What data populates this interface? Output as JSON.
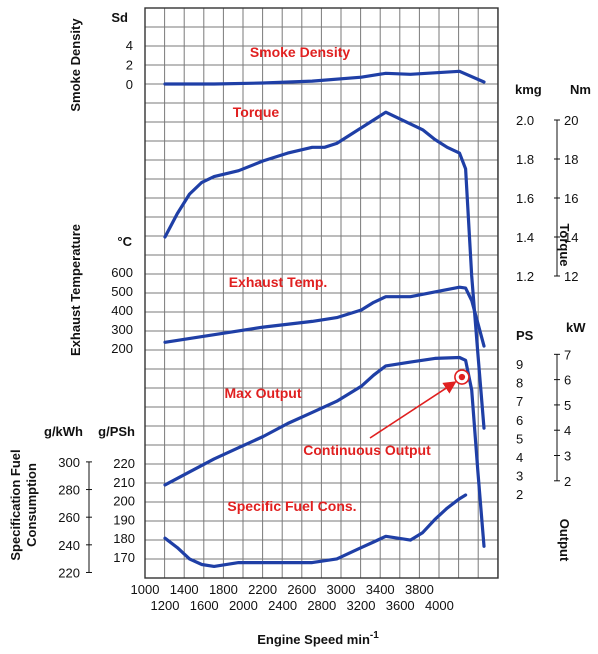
{
  "colors": {
    "curve": "#1f3fa6",
    "annotation": "#e02020",
    "grid": "#7a7a7a",
    "text": "#111111"
  },
  "chart_data": {
    "type": "line",
    "grid": true,
    "x_axis": {
      "label": "Engine Speed min",
      "label_sup": "-1",
      "lim": [
        1200,
        3800
      ],
      "ticks_upper": [
        "1000",
        "1400",
        "1800",
        "2200",
        "2600",
        "3000",
        "3400",
        "3800"
      ],
      "ticks_lower": [
        "1200",
        "1600",
        "2000",
        "2400",
        "2800",
        "3200",
        "3600",
        "4000"
      ]
    },
    "axes": {
      "smoke": {
        "unit": "Sd",
        "label": "Smoke Density",
        "ticks": [
          "4",
          "2",
          "0"
        ]
      },
      "torque_kgm": {
        "unit": "kmg",
        "ticks": [
          "2.0",
          "1.8",
          "1.6",
          "1.4",
          "1.2"
        ]
      },
      "torque_nm": {
        "unit": "Nm",
        "label": "Torque",
        "ticks": [
          "20",
          "18",
          "16",
          "14",
          "12"
        ]
      },
      "exhaust": {
        "unit": "°C",
        "label": "Exhaust Temperature",
        "ticks": [
          "600",
          "500",
          "400",
          "300",
          "200"
        ]
      },
      "output_ps": {
        "unit": "PS",
        "ticks": [
          "9",
          "8",
          "7",
          "6",
          "5",
          "4",
          "3",
          "2"
        ]
      },
      "output_kw": {
        "unit": "kW",
        "label": "Output",
        "ticks": [
          "7",
          "6",
          "5",
          "4",
          "3",
          "2"
        ]
      },
      "sfc_kwh": {
        "unit": "g/kWh",
        "ticks": [
          "300",
          "280",
          "260",
          "240",
          "220"
        ]
      },
      "sfc_psh": {
        "unit": "g/PSh",
        "ticks": [
          "220",
          "210",
          "200",
          "190",
          "180",
          "170"
        ]
      },
      "sfc_label_line1": "Specification Fuel",
      "sfc_label_line2": "Consumption"
    },
    "series": [
      {
        "name": "Smoke Density",
        "unit": "Sd",
        "x": [
          1200,
          1600,
          2000,
          2400,
          2800,
          3000,
          3200,
          3600,
          3800
        ],
        "y": [
          0,
          0,
          0.1,
          0.3,
          0.7,
          1.1,
          1.0,
          1.3,
          0.2
        ]
      },
      {
        "name": "Torque",
        "unit": "kgm",
        "x": [
          1200,
          1300,
          1400,
          1500,
          1600,
          1800,
          2000,
          2200,
          2400,
          2500,
          2600,
          2700,
          2800,
          2900,
          3000,
          3100,
          3200,
          3300,
          3400,
          3500,
          3600,
          3650,
          3700,
          3750,
          3800
        ],
        "y": [
          1.4,
          1.52,
          1.62,
          1.68,
          1.71,
          1.74,
          1.79,
          1.83,
          1.86,
          1.86,
          1.88,
          1.92,
          1.96,
          2.0,
          2.04,
          2.01,
          1.98,
          1.95,
          1.9,
          1.86,
          1.83,
          1.75,
          1.2,
          0.8,
          0.42
        ]
      },
      {
        "name": "Exhaust Temp.",
        "unit": "°C",
        "x": [
          1200,
          1600,
          2000,
          2400,
          2600,
          2800,
          2900,
          3000,
          3200,
          3400,
          3600,
          3650,
          3700,
          3750,
          3800
        ],
        "y": [
          230,
          270,
          310,
          340,
          360,
          400,
          440,
          470,
          470,
          495,
          520,
          515,
          450,
          330,
          210
        ]
      },
      {
        "name": "Max Output",
        "unit": "PS",
        "x": [
          1200,
          1400,
          1600,
          1800,
          2000,
          2200,
          2400,
          2600,
          2800,
          2900,
          3000,
          3200,
          3400,
          3600,
          3650,
          3700,
          3750,
          3800
        ],
        "y": [
          2.5,
          3.2,
          3.9,
          4.5,
          5.1,
          5.8,
          6.4,
          7.0,
          7.8,
          8.4,
          8.9,
          9.1,
          9.3,
          9.35,
          9.2,
          7.6,
          3.2,
          -0.8
        ]
      },
      {
        "name": "Specific Fuel Cons.",
        "unit": "g/PSh",
        "x": [
          1200,
          1300,
          1400,
          1500,
          1600,
          1800,
          2000,
          2200,
          2400,
          2600,
          2800,
          2900,
          3000,
          3100,
          3200,
          3300,
          3400,
          3500,
          3600,
          3650
        ],
        "y": [
          180,
          175,
          169,
          166,
          165,
          167,
          167,
          167,
          167,
          169,
          175,
          178,
          181,
          180,
          179,
          183,
          190,
          196,
          201,
          203
        ]
      }
    ],
    "annotations": [
      {
        "text": "Smoke Density"
      },
      {
        "text": "Torque"
      },
      {
        "text": "Exhaust Temp."
      },
      {
        "text": "Max Output"
      },
      {
        "text": "Specific Fuel Cons."
      },
      {
        "text": "Continuous Output",
        "marker": {
          "x": 3620,
          "y": 8.3,
          "unit": "PS"
        }
      }
    ]
  }
}
